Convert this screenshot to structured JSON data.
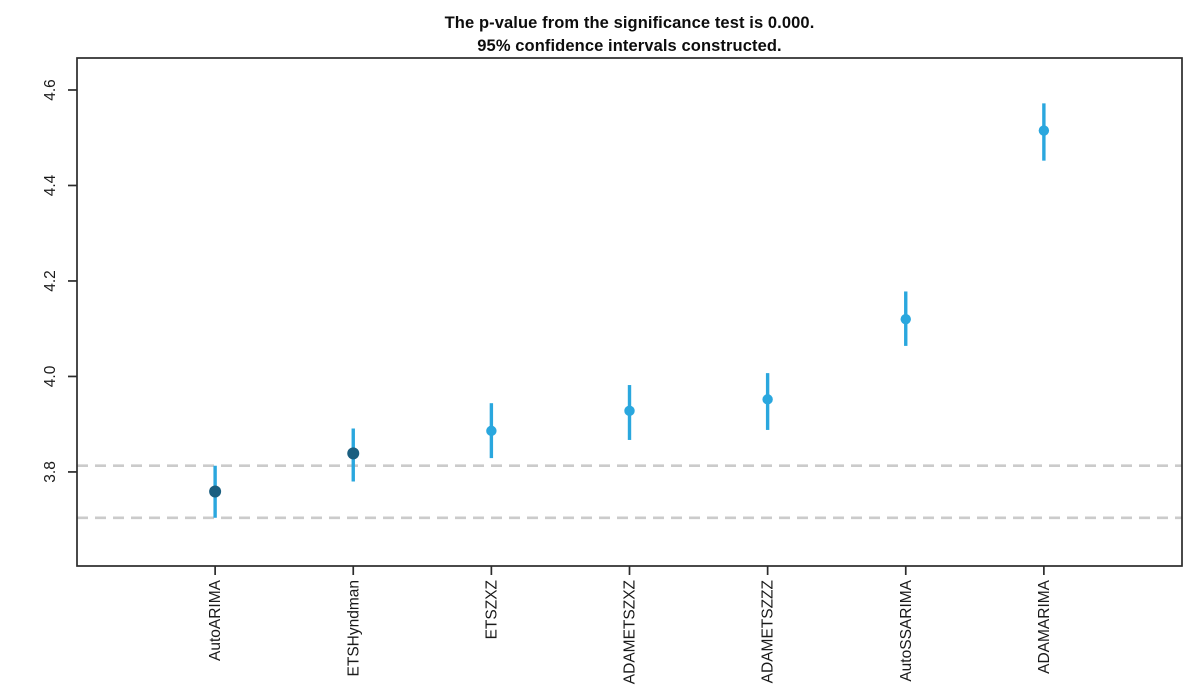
{
  "title": {
    "line1": "The p-value from the significance test is 0.000.",
    "line2": "95% confidence intervals constructed."
  },
  "chart_data": {
    "type": "scatter",
    "subtype": "mcb-confidence-interval-plot",
    "title": "The p-value from the significance test is 0.000. 95% confidence intervals constructed.",
    "xlabel": "",
    "ylabel": "",
    "ylim": [
      3.603,
      4.667
    ],
    "grid": false,
    "legend": "none",
    "y_ticks": [
      {
        "value": 3.8,
        "label": "3.8"
      },
      {
        "value": 4.0,
        "label": "4.0"
      },
      {
        "value": 4.2,
        "label": "4.2"
      },
      {
        "value": 4.4,
        "label": "4.4"
      },
      {
        "value": 4.6,
        "label": "4.6"
      }
    ],
    "categories": [
      "AutoARIMA",
      "ETSHyndman",
      "ETSZXZ",
      "ADAMETSZXZ",
      "ADAMETSZZZ",
      "AutoSSARIMA",
      "ADAMARIMA"
    ],
    "points": [
      {
        "label": "AutoARIMA",
        "mean": 3.759,
        "lower": 3.704,
        "upper": 3.813,
        "best_group": true
      },
      {
        "label": "ETSHyndman",
        "mean": 3.839,
        "lower": 3.78,
        "upper": 3.891,
        "best_group": true
      },
      {
        "label": "ETSZXZ",
        "mean": 3.886,
        "lower": 3.829,
        "upper": 3.944,
        "best_group": false
      },
      {
        "label": "ADAMETSZXZ",
        "mean": 3.928,
        "lower": 3.867,
        "upper": 3.982,
        "best_group": false
      },
      {
        "label": "ADAMETSZZZ",
        "mean": 3.952,
        "lower": 3.888,
        "upper": 4.007,
        "best_group": false
      },
      {
        "label": "AutoSSARIMA",
        "mean": 4.12,
        "lower": 4.064,
        "upper": 4.178,
        "best_group": false
      },
      {
        "label": "ADAMARIMA",
        "mean": 4.515,
        "lower": 4.452,
        "upper": 4.572,
        "best_group": false
      }
    ],
    "reference_lines": [
      3.813,
      3.704
    ],
    "colors": {
      "interval": "#2AA7DE",
      "point": "#2AA7DE",
      "point_best_group": "#1B5F80",
      "reference_dashed": "#CBCBCB",
      "axis": "#2B2B2B",
      "tick_text": "#1A1A1A"
    }
  }
}
